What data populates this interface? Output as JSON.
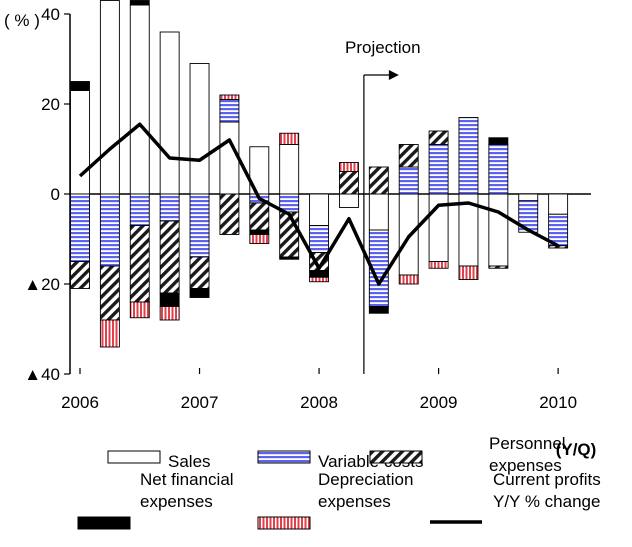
{
  "chart_data": {
    "type": "bar",
    "subtype": "stacked-bar-with-line",
    "y_unit_label": "( % )",
    "frequency_label": "(Y/Q)",
    "annotation": "Projection",
    "projection_x": 2008.375,
    "x_ticks": [
      "2006",
      "2007",
      "2008",
      "2009",
      "2010"
    ],
    "x_tick_positions": [
      2006,
      2007,
      2008,
      2009,
      2010
    ],
    "xlim": [
      2006,
      2010.25
    ],
    "y_ticks": [
      "40",
      "20",
      "0",
      "▲20",
      "▲40"
    ],
    "y_tick_values": [
      40,
      20,
      0,
      -20,
      -40
    ],
    "ylim": [
      -40,
      40
    ],
    "x": [
      2006.0,
      2006.25,
      2006.5,
      2006.75,
      2007.0,
      2007.25,
      2007.5,
      2007.75,
      2008.0,
      2008.25,
      2008.5,
      2008.75,
      2009.0,
      2009.25,
      2009.5,
      2009.75,
      2010.0
    ],
    "series": [
      {
        "key": "sales",
        "name": "Sales",
        "values": [
          23,
          43,
          42,
          36,
          29,
          16,
          10.5,
          11,
          -7,
          -3,
          -8,
          -18,
          -15,
          -16,
          -16,
          -1.5,
          -4.5
        ],
        "color": "#ffffff",
        "pattern": "none"
      },
      {
        "key": "variable",
        "name": "Variable costs",
        "values": [
          -15,
          -16,
          -7,
          -6,
          -14,
          5,
          -2,
          -4,
          -6,
          0,
          -17,
          6,
          11,
          17,
          11,
          -7,
          -7
        ],
        "color": "#6e74f2",
        "pattern": "horizontal-lines"
      },
      {
        "key": "personnel",
        "name": "Personnel\nexpenses",
        "values": [
          -6,
          -12,
          -17,
          -16,
          -7,
          -9,
          -6,
          -10,
          -4,
          5,
          6,
          5,
          3,
          0,
          -0.5,
          0,
          -0.5
        ],
        "color": "#ffffff",
        "pattern": "diagonal-hatch"
      },
      {
        "key": "financial",
        "name": "Net financial\nexpenses",
        "values": [
          2,
          0,
          1,
          -3,
          -2,
          0,
          -1,
          -0.5,
          -1.5,
          0,
          -1.5,
          0,
          0,
          0,
          1.5,
          0,
          0
        ],
        "color": "#000000",
        "pattern": "solid"
      },
      {
        "key": "depreciation",
        "name": "Depreciation\nexpenses",
        "values": [
          0,
          -6,
          -3.5,
          -3,
          0,
          1,
          -2,
          2.5,
          -1,
          2,
          0,
          -2,
          -1.5,
          -3,
          0,
          0,
          0
        ],
        "color": "#e96e6e",
        "pattern": "vertical-lines"
      },
      {
        "key": "profits",
        "type": "line",
        "name": "Current profits\nY/Y % change",
        "values": [
          4,
          10,
          15.5,
          8,
          7.5,
          12,
          -1,
          -4.5,
          -16.5,
          -5.5,
          -20,
          -9.5,
          -2.5,
          -2,
          -4,
          -8,
          -11.5
        ],
        "color": "#000000"
      }
    ],
    "legend": {
      "placement": "bottom",
      "columns": 3
    }
  }
}
